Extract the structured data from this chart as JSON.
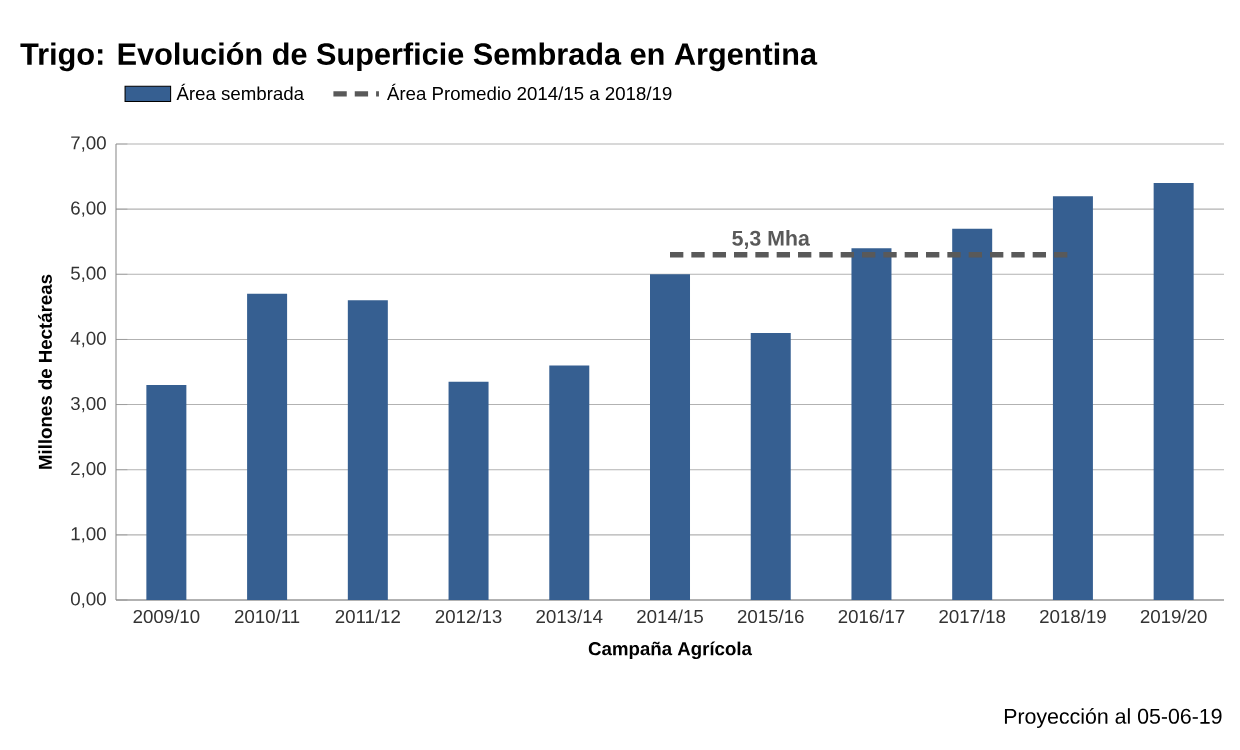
{
  "chart_data": {
    "type": "bar",
    "title": "Trigo: Evolución de Superficie Sembrada en Argentina",
    "xlabel": "Campaña Agrícola",
    "ylabel": "Millones de Hectáreas",
    "categories": [
      "2009/10",
      "2010/11",
      "2011/12",
      "2012/13",
      "2013/14",
      "2014/15",
      "2015/16",
      "2016/17",
      "2017/18",
      "2018/19",
      "2019/20"
    ],
    "series": [
      {
        "name": "Área sembrada",
        "color": "#365f91",
        "values": [
          3.3,
          4.7,
          4.6,
          3.35,
          3.6,
          5.0,
          4.1,
          5.4,
          5.7,
          6.2,
          6.4
        ]
      },
      {
        "name": "Área Promedio 2014/15 a 2018/19",
        "type": "line",
        "line_style": "dashed",
        "color": "#595959",
        "values": [
          null,
          null,
          null,
          null,
          null,
          5.3,
          5.3,
          5.3,
          5.3,
          5.3,
          null
        ]
      }
    ],
    "ylim": [
      0,
      7
    ],
    "yticks": [
      {
        "value": 0,
        "label": "0,00"
      },
      {
        "value": 1,
        "label": "1,00"
      },
      {
        "value": 2,
        "label": "2,00"
      },
      {
        "value": 3,
        "label": "3,00"
      },
      {
        "value": 4,
        "label": "4,00"
      },
      {
        "value": 5,
        "label": "5,00"
      },
      {
        "value": 6,
        "label": "6,00"
      },
      {
        "value": 7,
        "label": "7,00"
      }
    ],
    "grid": "y",
    "legend": "top left",
    "annotations": [
      {
        "text": "5,3 Mha",
        "x": "2015/16",
        "y": 5.3
      },
      "Proyección al 05-06-19"
    ]
  }
}
